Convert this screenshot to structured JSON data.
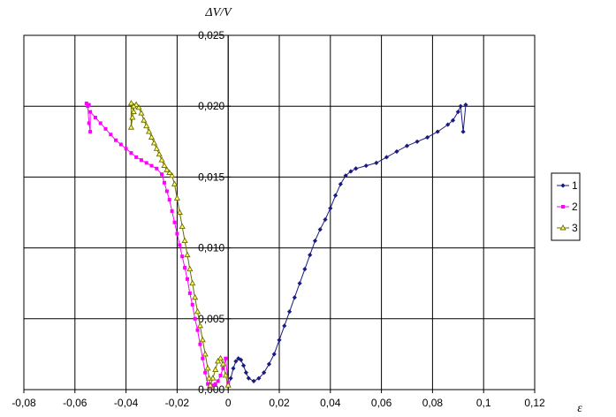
{
  "chart_data": {
    "type": "scatter",
    "title": "",
    "xlabel": "ε",
    "ylabel": "ΔV/V",
    "xlim": [
      -0.08,
      0.12
    ],
    "ylim": [
      0,
      0.025
    ],
    "x_ticks": [
      "-0,08",
      "-0,06",
      "-0,04",
      "-0,02",
      "0",
      "0,02",
      "0,04",
      "0,06",
      "0,08",
      "0,1",
      "0,12"
    ],
    "y_ticks": [
      "0,000",
      "0,005",
      "0,010",
      "0,015",
      "0,020",
      "0,025"
    ],
    "grid": true,
    "legend_position": "right",
    "series": [
      {
        "name": "1",
        "color": "#1a1a80",
        "marker": "diamond",
        "points": [
          [
            0,
            0.0003
          ],
          [
            0.001,
            0.0008
          ],
          [
            0.002,
            0.0015
          ],
          [
            0.003,
            0.002
          ],
          [
            0.004,
            0.0022
          ],
          [
            0.005,
            0.0021
          ],
          [
            0.006,
            0.0017
          ],
          [
            0.007,
            0.0012
          ],
          [
            0.008,
            0.0008
          ],
          [
            0.01,
            0.0006
          ],
          [
            0.012,
            0.0008
          ],
          [
            0.014,
            0.0012
          ],
          [
            0.016,
            0.0018
          ],
          [
            0.018,
            0.0025
          ],
          [
            0.02,
            0.0035
          ],
          [
            0.022,
            0.0045
          ],
          [
            0.024,
            0.0055
          ],
          [
            0.026,
            0.0065
          ],
          [
            0.028,
            0.0075
          ],
          [
            0.03,
            0.0085
          ],
          [
            0.032,
            0.0095
          ],
          [
            0.034,
            0.0105
          ],
          [
            0.036,
            0.0113
          ],
          [
            0.038,
            0.012
          ],
          [
            0.04,
            0.0128
          ],
          [
            0.042,
            0.0137
          ],
          [
            0.044,
            0.0145
          ],
          [
            0.046,
            0.0151
          ],
          [
            0.048,
            0.0154
          ],
          [
            0.05,
            0.0156
          ],
          [
            0.054,
            0.0158
          ],
          [
            0.058,
            0.016
          ],
          [
            0.062,
            0.0164
          ],
          [
            0.066,
            0.0168
          ],
          [
            0.07,
            0.0172
          ],
          [
            0.074,
            0.0175
          ],
          [
            0.078,
            0.0178
          ],
          [
            0.082,
            0.0182
          ],
          [
            0.086,
            0.0187
          ],
          [
            0.088,
            0.019
          ],
          [
            0.09,
            0.0196
          ],
          [
            0.091,
            0.02
          ],
          [
            0.092,
            0.0182
          ],
          [
            0.093,
            0.0201
          ]
        ]
      },
      {
        "name": "2",
        "color": "#ff00ff",
        "marker": "square",
        "points": [
          [
            0,
            0.0005
          ],
          [
            -0.001,
            0.0022
          ],
          [
            -0.002,
            0.0015
          ],
          [
            -0.003,
            0.001
          ],
          [
            -0.004,
            0.0006
          ],
          [
            -0.005,
            0.0004
          ],
          [
            -0.006,
            0.0003
          ],
          [
            -0.007,
            0.0002
          ],
          [
            -0.008,
            0.0004
          ],
          [
            -0.009,
            0.0012
          ],
          [
            -0.01,
            0.0022
          ],
          [
            -0.011,
            0.0032
          ],
          [
            -0.012,
            0.0042
          ],
          [
            -0.013,
            0.005
          ],
          [
            -0.014,
            0.006
          ],
          [
            -0.015,
            0.0068
          ],
          [
            -0.016,
            0.0078
          ],
          [
            -0.017,
            0.0086
          ],
          [
            -0.018,
            0.0094
          ],
          [
            -0.019,
            0.0102
          ],
          [
            -0.02,
            0.011
          ],
          [
            -0.021,
            0.0118
          ],
          [
            -0.022,
            0.0126
          ],
          [
            -0.023,
            0.0134
          ],
          [
            -0.024,
            0.014
          ],
          [
            -0.025,
            0.0146
          ],
          [
            -0.026,
            0.0152
          ],
          [
            -0.028,
            0.0156
          ],
          [
            -0.03,
            0.0158
          ],
          [
            -0.032,
            0.016
          ],
          [
            -0.034,
            0.0162
          ],
          [
            -0.036,
            0.0164
          ],
          [
            -0.038,
            0.0167
          ],
          [
            -0.04,
            0.017
          ],
          [
            -0.042,
            0.0173
          ],
          [
            -0.044,
            0.0176
          ],
          [
            -0.046,
            0.018
          ],
          [
            -0.048,
            0.0184
          ],
          [
            -0.05,
            0.0188
          ],
          [
            -0.052,
            0.0192
          ],
          [
            -0.054,
            0.0196
          ],
          [
            -0.054,
            0.0182
          ],
          [
            -0.0545,
            0.0188
          ],
          [
            -0.055,
            0.02
          ],
          [
            -0.0555,
            0.0202
          ],
          [
            -0.0545,
            0.0201
          ]
        ]
      },
      {
        "name": "3",
        "color": "#6b6b00",
        "marker": "triangle",
        "points": [
          [
            0,
            0.0003
          ],
          [
            -0.001,
            0.001
          ],
          [
            -0.002,
            0.0018
          ],
          [
            -0.003,
            0.0022
          ],
          [
            -0.004,
            0.002
          ],
          [
            -0.005,
            0.0014
          ],
          [
            -0.006,
            0.0008
          ],
          [
            -0.007,
            0.0003
          ],
          [
            -0.0075,
            0.0008
          ],
          [
            -0.008,
            0.0015
          ],
          [
            -0.009,
            0.0025
          ],
          [
            -0.01,
            0.0035
          ],
          [
            -0.011,
            0.0045
          ],
          [
            -0.012,
            0.0055
          ],
          [
            -0.013,
            0.0065
          ],
          [
            -0.014,
            0.0075
          ],
          [
            -0.015,
            0.0085
          ],
          [
            -0.016,
            0.0095
          ],
          [
            -0.017,
            0.0105
          ],
          [
            -0.018,
            0.0115
          ],
          [
            -0.019,
            0.0125
          ],
          [
            -0.02,
            0.0135
          ],
          [
            -0.021,
            0.0145
          ],
          [
            -0.022,
            0.0151
          ],
          [
            -0.023,
            0.0153
          ],
          [
            -0.024,
            0.0155
          ],
          [
            -0.025,
            0.0158
          ],
          [
            -0.026,
            0.0162
          ],
          [
            -0.027,
            0.0166
          ],
          [
            -0.028,
            0.017
          ],
          [
            -0.029,
            0.0174
          ],
          [
            -0.03,
            0.0178
          ],
          [
            -0.031,
            0.0182
          ],
          [
            -0.032,
            0.0186
          ],
          [
            -0.033,
            0.019
          ],
          [
            -0.034,
            0.0195
          ],
          [
            -0.035,
            0.0199
          ],
          [
            -0.036,
            0.0201
          ],
          [
            -0.037,
            0.02
          ],
          [
            -0.0375,
            0.0192
          ],
          [
            -0.038,
            0.0185
          ],
          [
            -0.038,
            0.0202
          ],
          [
            -0.037,
            0.0196
          ]
        ]
      }
    ]
  }
}
